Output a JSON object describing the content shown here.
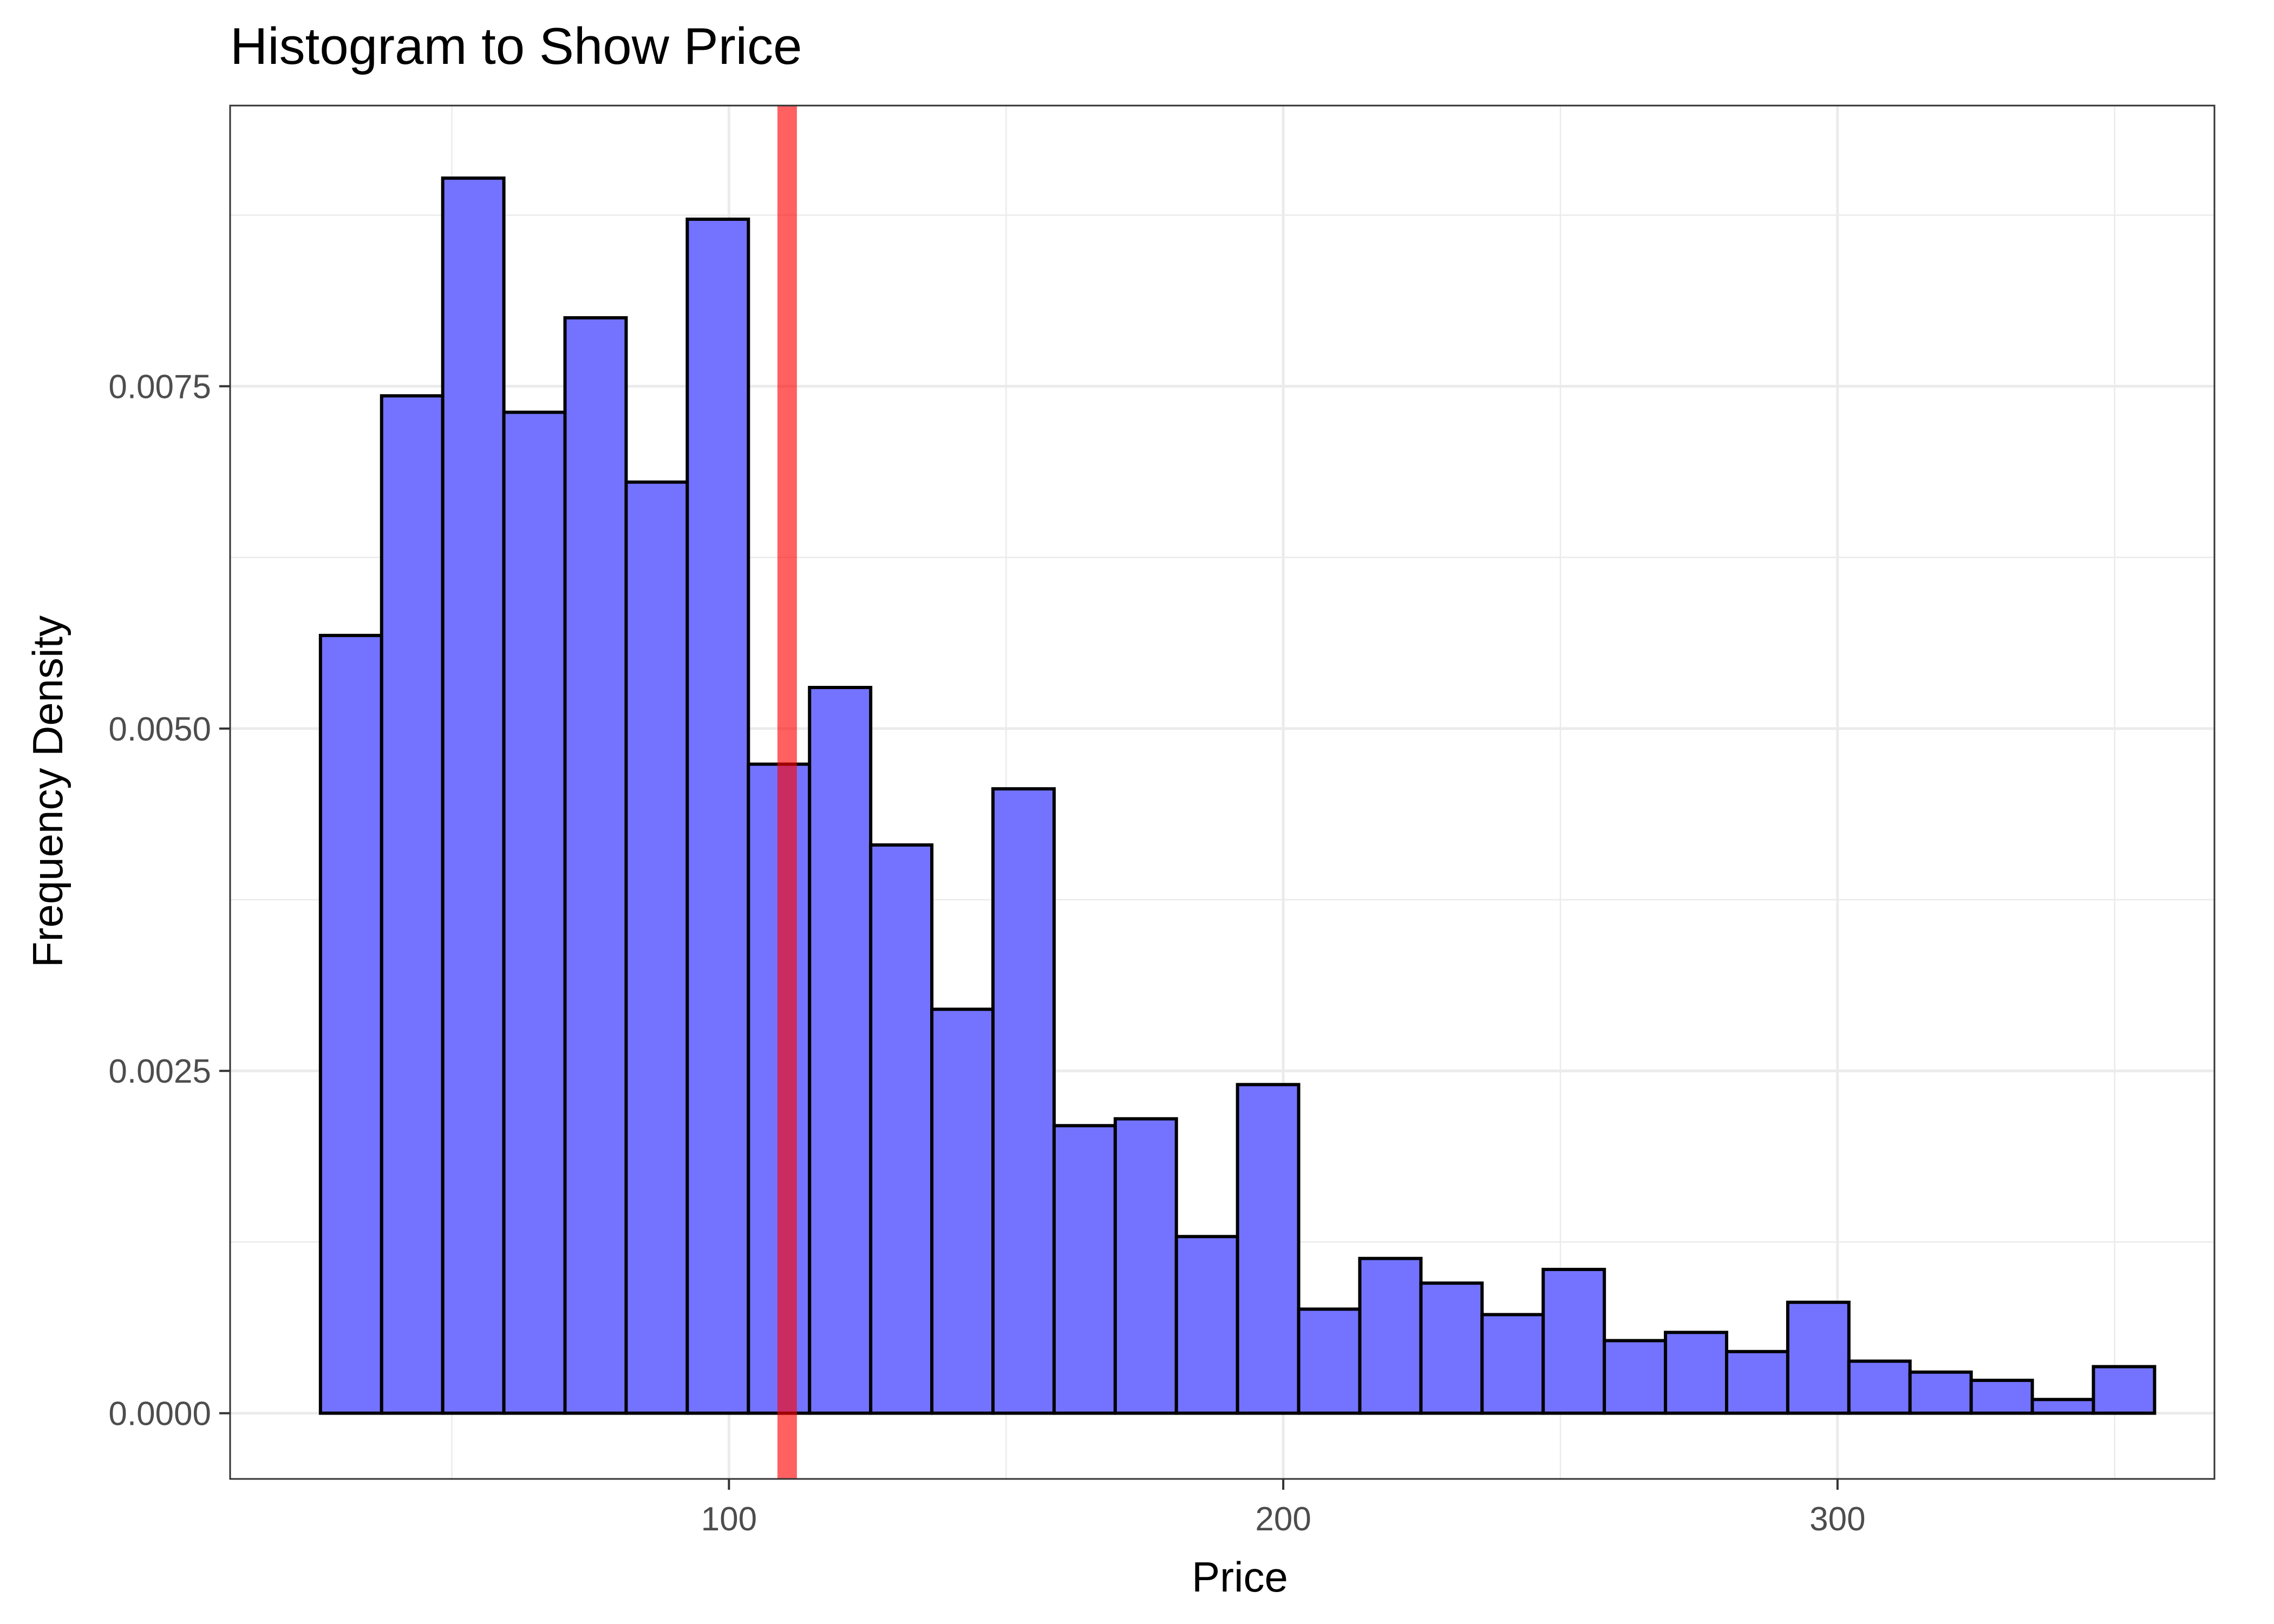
{
  "chart_data": {
    "type": "bar",
    "title": "Histogram to Show Price",
    "xlabel": "Price",
    "ylabel": "Frequency Density",
    "xlim": [
      10,
      368
    ],
    "ylim": [
      -0.00048,
      0.00955
    ],
    "x_ticks": [
      {
        "value": 100,
        "label": "100"
      },
      {
        "value": 200,
        "label": "200"
      },
      {
        "value": 300,
        "label": "300"
      }
    ],
    "x_minor_ticks": [
      50,
      150,
      250,
      350
    ],
    "y_ticks": [
      {
        "value": 0,
        "label": "0.0000"
      },
      {
        "value": 0.0025,
        "label": "0.0025"
      },
      {
        "value": 0.005,
        "label": "0.0050"
      },
      {
        "value": 0.0075,
        "label": "0.0075"
      }
    ],
    "y_minor_ticks": [
      0.00125,
      0.00375,
      0.00625,
      0.00875
    ],
    "grid": true,
    "bin_start": 26.3,
    "bin_width": 11.03,
    "values": [
      0.00568,
      0.00743,
      0.00902,
      0.00731,
      0.008,
      0.0068,
      0.00872,
      0.00474,
      0.0053,
      0.00415,
      0.00295,
      0.00456,
      0.0021,
      0.00215,
      0.00129,
      0.0024,
      0.00076,
      0.00113,
      0.00095,
      0.00072,
      0.00105,
      0.00053,
      0.00059,
      0.00045,
      0.00081,
      0.00038,
      0.0003,
      0.00024,
      0.0001,
      0.00034
    ],
    "reference_line": {
      "value": 110.5,
      "color": "#ff0000"
    },
    "colors": {
      "bar_fill": "#7373ff",
      "bar_stroke": "#000000",
      "panel_border": "#333333",
      "grid": "#ebebeb",
      "tick_text": "#4d4d4d",
      "reference_line": "#ff0000"
    }
  }
}
